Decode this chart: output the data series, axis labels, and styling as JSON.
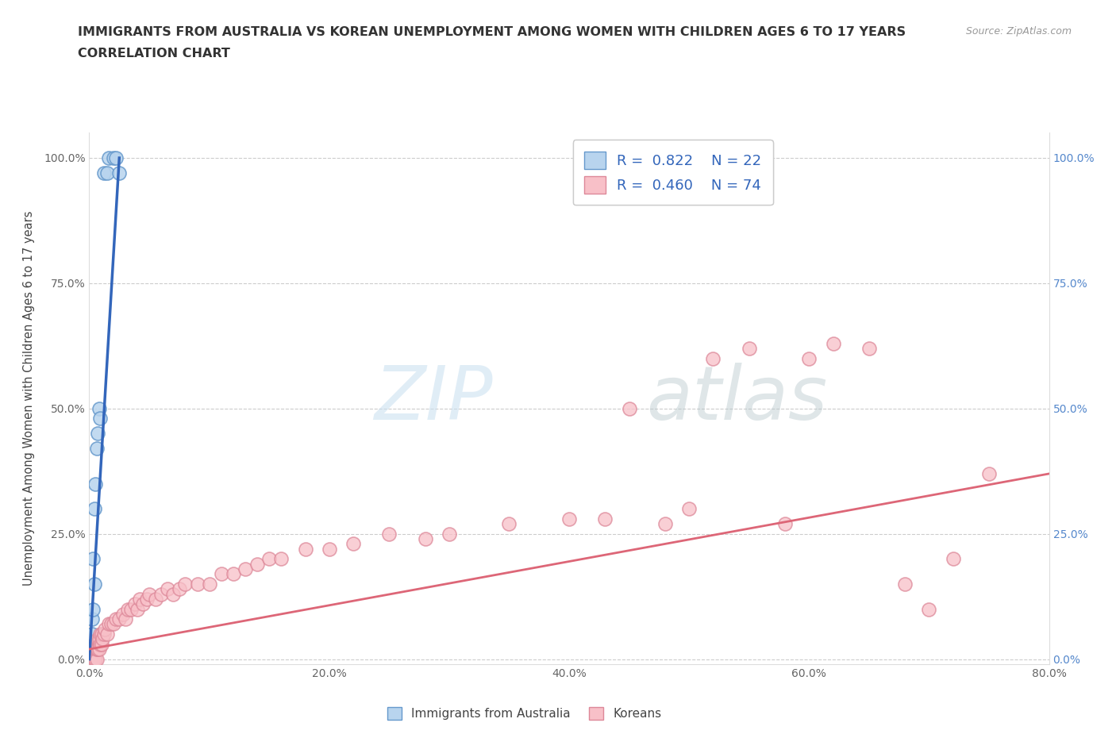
{
  "title_line1": "IMMIGRANTS FROM AUSTRALIA VS KOREAN UNEMPLOYMENT AMONG WOMEN WITH CHILDREN AGES 6 TO 17 YEARS",
  "title_line2": "CORRELATION CHART",
  "source_text": "Source: ZipAtlas.com",
  "ylabel": "Unemployment Among Women with Children Ages 6 to 17 years",
  "xlim": [
    0,
    0.8
  ],
  "ylim": [
    -0.01,
    1.05
  ],
  "xticks": [
    0.0,
    0.2,
    0.4,
    0.6,
    0.8
  ],
  "xticklabels": [
    "0.0%",
    "20.0%",
    "40.0%",
    "60.0%",
    "80.0%"
  ],
  "yticks": [
    0.0,
    0.25,
    0.5,
    0.75,
    1.0
  ],
  "yticklabels": [
    "0.0%",
    "25.0%",
    "50.0%",
    "75.0%",
    "100.0%"
  ],
  "watermark_zip": "ZIP",
  "watermark_atlas": "atlas",
  "blue_color": "#b8d4ee",
  "blue_edge_color": "#6699cc",
  "blue_line_color": "#3366bb",
  "pink_color": "#f8c0c8",
  "pink_edge_color": "#dd8899",
  "pink_line_color": "#dd6677",
  "legend_blue_R": "0.822",
  "legend_blue_N": "22",
  "legend_pink_R": "0.460",
  "legend_pink_N": "74",
  "legend_label_blue": "Immigrants from Australia",
  "legend_label_pink": "Koreans",
  "blue_scatter_x": [
    0.001,
    0.001,
    0.001,
    0.002,
    0.002,
    0.002,
    0.003,
    0.003,
    0.003,
    0.004,
    0.004,
    0.005,
    0.006,
    0.007,
    0.008,
    0.009,
    0.012,
    0.015,
    0.016,
    0.02,
    0.022,
    0.025
  ],
  "blue_scatter_y": [
    0.0,
    0.0,
    0.02,
    0.0,
    0.05,
    0.08,
    0.0,
    0.1,
    0.2,
    0.15,
    0.3,
    0.35,
    0.42,
    0.45,
    0.5,
    0.48,
    0.97,
    0.97,
    1.0,
    1.0,
    1.0,
    0.97
  ],
  "pink_scatter_x": [
    0.001,
    0.002,
    0.002,
    0.003,
    0.003,
    0.004,
    0.004,
    0.005,
    0.005,
    0.006,
    0.006,
    0.007,
    0.007,
    0.008,
    0.008,
    0.009,
    0.009,
    0.01,
    0.01,
    0.011,
    0.012,
    0.013,
    0.015,
    0.016,
    0.018,
    0.02,
    0.022,
    0.025,
    0.028,
    0.03,
    0.032,
    0.035,
    0.038,
    0.04,
    0.042,
    0.045,
    0.048,
    0.05,
    0.055,
    0.06,
    0.065,
    0.07,
    0.075,
    0.08,
    0.09,
    0.1,
    0.11,
    0.12,
    0.13,
    0.14,
    0.15,
    0.16,
    0.18,
    0.2,
    0.22,
    0.25,
    0.28,
    0.3,
    0.35,
    0.4,
    0.43,
    0.45,
    0.48,
    0.5,
    0.52,
    0.55,
    0.58,
    0.6,
    0.62,
    0.65,
    0.68,
    0.7,
    0.72,
    0.75
  ],
  "pink_scatter_y": [
    0.0,
    0.0,
    0.02,
    0.0,
    0.02,
    0.0,
    0.03,
    0.0,
    0.02,
    0.0,
    0.02,
    0.02,
    0.04,
    0.02,
    0.04,
    0.03,
    0.05,
    0.03,
    0.05,
    0.04,
    0.05,
    0.06,
    0.05,
    0.07,
    0.07,
    0.07,
    0.08,
    0.08,
    0.09,
    0.08,
    0.1,
    0.1,
    0.11,
    0.1,
    0.12,
    0.11,
    0.12,
    0.13,
    0.12,
    0.13,
    0.14,
    0.13,
    0.14,
    0.15,
    0.15,
    0.15,
    0.17,
    0.17,
    0.18,
    0.19,
    0.2,
    0.2,
    0.22,
    0.22,
    0.23,
    0.25,
    0.24,
    0.25,
    0.27,
    0.28,
    0.28,
    0.5,
    0.27,
    0.3,
    0.6,
    0.62,
    0.27,
    0.6,
    0.63,
    0.62,
    0.15,
    0.1,
    0.2,
    0.37
  ],
  "blue_trendline_x": [
    0.0,
    0.025
  ],
  "blue_trendline_y": [
    0.0,
    1.0
  ],
  "pink_trendline_x": [
    0.0,
    0.8
  ],
  "pink_trendline_y": [
    0.02,
    0.37
  ]
}
